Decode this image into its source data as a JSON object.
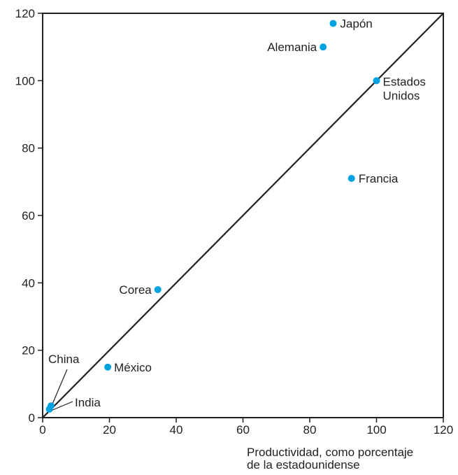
{
  "chart_data": {
    "type": "scatter",
    "title": "",
    "xlabel": [
      "Productividad, como porcentaje",
      "de la estadounidense"
    ],
    "ylabel": "",
    "xlim": [
      0,
      120
    ],
    "ylim": [
      0,
      120
    ],
    "x_ticks": [
      0,
      20,
      40,
      60,
      80,
      100,
      120
    ],
    "y_ticks": [
      0,
      20,
      40,
      60,
      80,
      100,
      120
    ],
    "grid": false,
    "point_color": "#00a3e0",
    "line_color": "#231f20",
    "reference_line": {
      "from": [
        0,
        0
      ],
      "to": [
        120,
        120
      ]
    },
    "points": [
      {
        "label": "Japón",
        "x": 87,
        "y": 117
      },
      {
        "label": "Alemania",
        "x": 84,
        "y": 110
      },
      {
        "label": [
          "Estados",
          "Unidos"
        ],
        "x": 100,
        "y": 100
      },
      {
        "label": "Francia",
        "x": 92.5,
        "y": 71
      },
      {
        "label": "Corea",
        "x": 34.5,
        "y": 38
      },
      {
        "label": "México",
        "x": 19.5,
        "y": 15
      },
      {
        "label": "China",
        "x": 2.5,
        "y": 3.5
      },
      {
        "label": "India",
        "x": 2,
        "y": 2.5
      }
    ]
  }
}
